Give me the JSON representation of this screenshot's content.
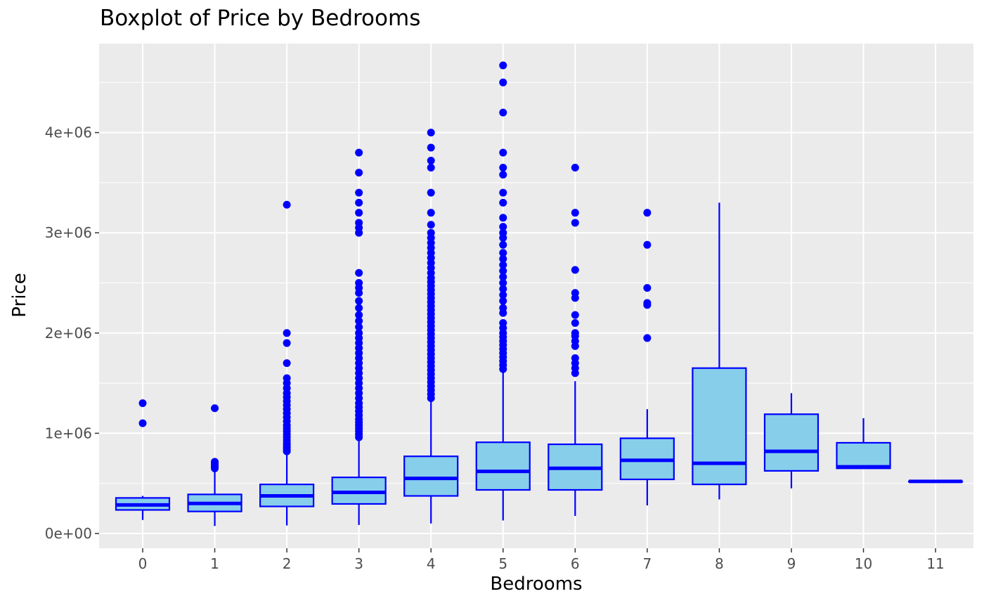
{
  "chart_data": {
    "type": "boxplot",
    "title": "Boxplot of Price by Bedrooms",
    "xlabel": "Bedrooms",
    "ylabel": "Price",
    "ylim": [
      -170000,
      4900000
    ],
    "y_ticks": [
      0,
      1000000,
      2000000,
      3000000,
      4000000
    ],
    "y_tick_labels": [
      "0e+00",
      "1e+06",
      "2e+06",
      "3e+06",
      "4e+06"
    ],
    "categories": [
      "0",
      "1",
      "2",
      "3",
      "4",
      "5",
      "6",
      "7",
      "8",
      "9",
      "10",
      "11"
    ],
    "grid": true,
    "colors": {
      "panel": "#EBEBEB",
      "grid": "#FFFFFF",
      "box_fill": "#87CEEB",
      "box_line": "#0000FF",
      "outlier": "#0000FF",
      "tick_text": "#4D4D4D",
      "text": "#000000"
    },
    "boxes": [
      {
        "category": "0",
        "whisker_low": 135000,
        "q1": 235000,
        "median": 285000,
        "q3": 355000,
        "whisker_high": 375000,
        "outliers": [
          1100000,
          1300000
        ]
      },
      {
        "category": "1",
        "whisker_low": 75000,
        "q1": 220000,
        "median": 300000,
        "q3": 390000,
        "whisker_high": 615000,
        "outliers": [
          650000,
          665000,
          680000,
          700000,
          715000,
          1250000
        ]
      },
      {
        "category": "2",
        "whisker_low": 80000,
        "q1": 270000,
        "median": 375000,
        "q3": 490000,
        "whisker_high": 800000,
        "outliers": [
          820000,
          840000,
          860000,
          880000,
          900000,
          930000,
          960000,
          990000,
          1020000,
          1050000,
          1080000,
          1120000,
          1160000,
          1200000,
          1240000,
          1280000,
          1320000,
          1360000,
          1400000,
          1450000,
          1500000,
          1550000,
          1700000,
          1900000,
          2000000,
          3280000
        ]
      },
      {
        "category": "3",
        "whisker_low": 85000,
        "q1": 295000,
        "median": 410000,
        "q3": 560000,
        "whisker_high": 950000,
        "outliers": [
          960000,
          990000,
          1020000,
          1050000,
          1080000,
          1110000,
          1140000,
          1180000,
          1220000,
          1260000,
          1300000,
          1350000,
          1400000,
          1450000,
          1500000,
          1550000,
          1600000,
          1650000,
          1700000,
          1750000,
          1800000,
          1850000,
          1900000,
          1950000,
          2000000,
          2060000,
          2120000,
          2180000,
          2250000,
          2320000,
          2400000,
          2450000,
          2500000,
          2600000,
          3000000,
          3050000,
          3100000,
          3200000,
          3300000,
          3400000,
          3600000,
          3800000
        ]
      },
      {
        "category": "4",
        "whisker_low": 100000,
        "q1": 375000,
        "median": 550000,
        "q3": 770000,
        "whisker_high": 1330000,
        "outliers": [
          1350000,
          1390000,
          1430000,
          1470000,
          1510000,
          1550000,
          1590000,
          1630000,
          1670000,
          1710000,
          1750000,
          1790000,
          1830000,
          1870000,
          1910000,
          1950000,
          1990000,
          2030000,
          2070000,
          2110000,
          2150000,
          2190000,
          2230000,
          2270000,
          2310000,
          2350000,
          2390000,
          2430000,
          2470000,
          2510000,
          2550000,
          2600000,
          2650000,
          2700000,
          2750000,
          2800000,
          2850000,
          2900000,
          2950000,
          3000000,
          3080000,
          3200000,
          3400000,
          3650000,
          3720000,
          3850000,
          4000000
        ]
      },
      {
        "category": "5",
        "whisker_low": 130000,
        "q1": 435000,
        "median": 620000,
        "q3": 910000,
        "whisker_high": 1620000,
        "outliers": [
          1640000,
          1680000,
          1720000,
          1760000,
          1800000,
          1840000,
          1880000,
          1920000,
          1960000,
          2000000,
          2050000,
          2100000,
          2200000,
          2250000,
          2320000,
          2380000,
          2440000,
          2500000,
          2560000,
          2620000,
          2680000,
          2740000,
          2800000,
          2880000,
          2950000,
          3000000,
          3060000,
          3150000,
          3300000,
          3400000,
          3580000,
          3650000,
          3800000,
          4200000,
          4500000,
          4670000
        ]
      },
      {
        "category": "6",
        "whisker_low": 175000,
        "q1": 435000,
        "median": 650000,
        "q3": 890000,
        "whisker_high": 1520000,
        "outliers": [
          1600000,
          1650000,
          1700000,
          1750000,
          1870000,
          1920000,
          1970000,
          2000000,
          2100000,
          2180000,
          2350000,
          2400000,
          2630000,
          3100000,
          3200000,
          3650000
        ]
      },
      {
        "category": "7",
        "whisker_low": 280000,
        "q1": 540000,
        "median": 730000,
        "q3": 950000,
        "whisker_high": 1240000,
        "outliers": [
          1950000,
          2280000,
          2300000,
          2450000,
          2880000,
          3200000
        ]
      },
      {
        "category": "8",
        "whisker_low": 340000,
        "q1": 490000,
        "median": 700000,
        "q3": 1650000,
        "whisker_high": 3300000,
        "outliers": []
      },
      {
        "category": "9",
        "whisker_low": 450000,
        "q1": 625000,
        "median": 820000,
        "q3": 1190000,
        "whisker_high": 1400000,
        "outliers": []
      },
      {
        "category": "10",
        "whisker_low": 650000,
        "q1": 650000,
        "median": 665000,
        "q3": 905000,
        "whisker_high": 1150000,
        "outliers": []
      },
      {
        "category": "11",
        "whisker_low": 520000,
        "q1": 520000,
        "median": 520000,
        "q3": 520000,
        "whisker_high": 520000,
        "outliers": []
      }
    ]
  }
}
